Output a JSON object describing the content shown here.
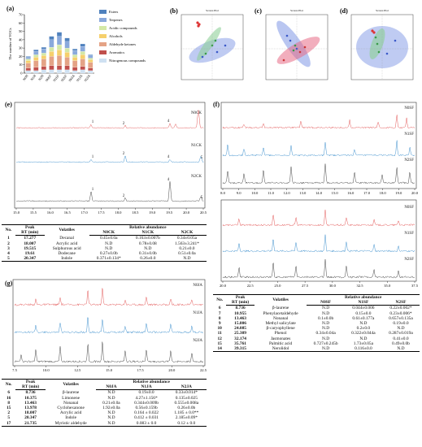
{
  "bar_chart": {
    "label": "(a)",
    "ylabel": "The number of VOCs",
    "yticks": [
      "0",
      "10",
      "20",
      "30",
      "40",
      "50",
      "60",
      "70"
    ],
    "categories": [
      "N0H",
      "N1H",
      "N2H",
      "N0SF",
      "N1SF",
      "N2SF",
      "N0JA",
      "N1JA",
      "N2JA"
    ],
    "legend": [
      "Esters",
      "Terpenes",
      "Acidic compounds",
      "Alcohols",
      "Aldehyde ketones",
      "Aromatics",
      "Nitrogenous compounds"
    ],
    "colors": [
      "#4f81bd",
      "#8aa9dc",
      "#d4e8a6",
      "#f6d06c",
      "#e4a386",
      "#c0504d",
      "#cfe1f2"
    ]
  },
  "chart_data": {
    "type": "bar",
    "title": "",
    "xlabel": "",
    "ylabel": "The number of VOCs",
    "ylim": [
      0,
      70
    ],
    "categories": [
      "N0H",
      "N1H",
      "N2H",
      "N0SF",
      "N1SF",
      "N2SF",
      "N0JA",
      "N1JA",
      "N2JA"
    ],
    "series": [
      {
        "name": "Nitrogenous compounds",
        "values": [
          3,
          3,
          4,
          4,
          4,
          4,
          3,
          4,
          3
        ]
      },
      {
        "name": "Aromatics",
        "values": [
          3,
          4,
          4,
          5,
          5,
          5,
          4,
          4,
          3
        ]
      },
      {
        "name": "Aldehyde ketones",
        "values": [
          6,
          8,
          9,
          11,
          12,
          10,
          8,
          9,
          7
        ]
      },
      {
        "name": "Alcohols",
        "values": [
          3,
          4,
          4,
          6,
          7,
          6,
          4,
          5,
          3
        ]
      },
      {
        "name": "Acidic compounds",
        "values": [
          2,
          3,
          3,
          5,
          6,
          5,
          3,
          4,
          2
        ]
      },
      {
        "name": "Terpenes",
        "values": [
          2,
          4,
          5,
          9,
          10,
          8,
          5,
          6,
          3
        ]
      },
      {
        "name": "Esters",
        "values": [
          1,
          2,
          2,
          4,
          5,
          4,
          2,
          3,
          1
        ]
      }
    ]
  },
  "pca": {
    "labels": [
      "(b)",
      "(c)",
      "(d)"
    ],
    "title": "Scores Plot"
  },
  "chrom_e": {
    "label": "(e)",
    "traces": [
      "N0CK",
      "N1CK",
      "N2CK"
    ],
    "xticks": [
      "15.0",
      "15.5",
      "16.0",
      "16.5",
      "17.0",
      "17.5",
      "18.0",
      "18.5",
      "19.0",
      "19.5",
      "20.0",
      "20.5"
    ],
    "peaks": [
      "1",
      "2",
      "3",
      "4",
      "5"
    ]
  },
  "chrom_f": {
    "label": "(f)",
    "traces": [
      "N0SF",
      "N1SF",
      "N2SF"
    ],
    "xticks_top": [
      "8.0",
      "9.0",
      "10.0",
      "11.0",
      "12.0",
      "13.0",
      "14.0",
      "15.0",
      "16.0",
      "17.0",
      "18.0",
      "19.0",
      "20.0"
    ],
    "xticks_bottom": [
      "20.0",
      "22.5",
      "25.0",
      "27.5",
      "30.0",
      "32.5",
      "35.0",
      "37.5"
    ]
  },
  "chrom_g": {
    "label": "(g)",
    "traces": [
      "N0JA",
      "N1JA",
      "N2JA"
    ],
    "xticks": [
      "7.5",
      "10.0",
      "12.5",
      "15.0",
      "17.5",
      "20.0",
      "22.5"
    ]
  },
  "table_e": {
    "h_no": "No.",
    "h_peak": "Peak",
    "h_rt": "RT (min)",
    "h_vol": "Volatiles",
    "h_rel": "Relative abundance",
    "groups": [
      "N0CK",
      "N1CK",
      "N2CK"
    ],
    "rows": [
      [
        "1",
        "17.277",
        "Decanal",
        "0.45±0.0a",
        "0.163±0.007b",
        "0.34±0.05a"
      ],
      [
        "2",
        "18.007",
        "Acrylic acid",
        "N.D",
        "0.78±0.08",
        "1.563±3.241*"
      ],
      [
        "3",
        "19.515",
        "Sulphurous acid",
        "N.D",
        "N.D",
        "0.21±0.0"
      ],
      [
        "4",
        "19.61",
        "Dodecane",
        "0.27±0.0b",
        "0.31±0.0b",
        "0.51±0.0a"
      ],
      [
        "5",
        "20.347",
        "Indole",
        "0.371±0.134*",
        "0.26±0.0",
        "N.D"
      ]
    ]
  },
  "table_f": {
    "h_no": "No.",
    "h_peak": "Peak",
    "h_rt": "RT (min)",
    "h_vol": "Volatiles",
    "h_rel": "Relative abundance",
    "groups": [
      "N0SF",
      "N1SF",
      "N2SF"
    ],
    "rows": [
      [
        "6",
        "8.736",
        "β-laurene",
        "N.D",
        "0.044±0.006",
        "0.22±0.002*"
      ],
      [
        "7",
        "10.955",
        "Phenylacetaldehyde",
        "N.D",
        "0.15±0.0",
        "0.23±0.006*"
      ],
      [
        "8",
        "13.463",
        "Nonanal",
        "0.1±0.0b",
        "0.61±0.177a",
        "0.657±0.135a"
      ],
      [
        "9",
        "15.806",
        "Methyl salicylate",
        "N.D",
        "N.D",
        "0.19±0.0"
      ],
      [
        "10",
        "24.085",
        "β-caryophyllene",
        "N.D",
        "0.2±0.0",
        "N.D"
      ],
      [
        "11",
        "25.309",
        "Phenol",
        "0.34±0.04a",
        "0.322±0.044a",
        "0.287±0.019a"
      ],
      [
        "12",
        "32.174",
        "Jasmonates",
        "N.D",
        "N.D",
        "0.41±0.0"
      ],
      [
        "15",
        "35.761",
        "Palmitic acid",
        "0.727±0.245b",
        "1.73±0.05a",
        "0.49±0.0b"
      ],
      [
        "14",
        "39.315",
        "Nerolidol",
        "N.D",
        "0.116±0.0",
        "N.D"
      ]
    ]
  },
  "table_g": {
    "h_no": "No.",
    "h_peak": "Peak",
    "h_rt": "RT (min)",
    "h_vol": "Volatiles",
    "h_rel": "Relative abundance",
    "groups": [
      "N0JA",
      "N1JA",
      "N2JA"
    ],
    "rows": [
      [
        "6",
        "8.736",
        "β-laurene",
        "N.D",
        "0.19±0.0",
        "0.33±0.014*"
      ],
      [
        "16",
        "10.375",
        "Limonene",
        "N.D",
        "4.27±1.156*",
        "0.135±0.025"
      ],
      [
        "8",
        "13.463",
        "Nonanal",
        "0.21±0.0a",
        "0.344±0.009b",
        "0.555±0.008a"
      ],
      [
        "15",
        "13.978",
        "Cyclohexanone",
        "1.92±0.0a",
        "0.56±0.159b",
        "0.26±0.0b"
      ],
      [
        "2",
        "18.007",
        "Acrylic acid",
        "N.D",
        "0.164 ± 0.022",
        "1.185 ± 0.0**"
      ],
      [
        "5",
        "20.347",
        "Indole",
        "N.D",
        "0.412 ± 0.031",
        "2.185±0.09*"
      ],
      [
        "17",
        "21.735",
        "Myristic aldehyde",
        "N.D",
        "0.083 ± 0.0",
        "0.12 ± 0.0"
      ]
    ]
  }
}
